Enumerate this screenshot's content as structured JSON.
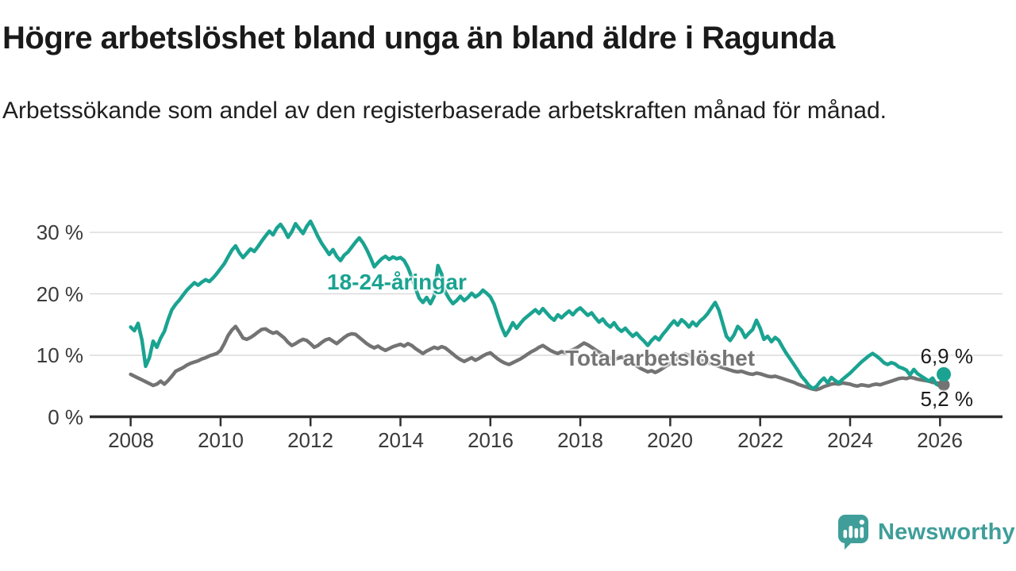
{
  "header": {
    "title": "Högre arbetslöshet bland unga än bland äldre i Ragunda",
    "subtitle": "Arbetssökande som andel av den registerbaserade arbetskraften månad för månad."
  },
  "chart_data": {
    "type": "line",
    "title": "Högre arbetslöshet bland unga än bland äldre i Ragunda",
    "subtitle": "Arbetssökande som andel av den registerbaserade arbetskraften månad för månad.",
    "unit": "%",
    "frequency": "monthly",
    "x_start": "2008-01",
    "x_end": "2026-02",
    "x_tick_labels": [
      "2008",
      "2010",
      "2012",
      "2014",
      "2016",
      "2018",
      "2020",
      "2022",
      "2024",
      "2026"
    ],
    "x_tick_years": [
      2008,
      2010,
      2012,
      2014,
      2016,
      2018,
      2020,
      2022,
      2024,
      2026
    ],
    "y_ticks": [
      0,
      10,
      20,
      30
    ],
    "y_tick_labels": [
      "0 %",
      "10 %",
      "20 %",
      "30 %"
    ],
    "ylim": [
      0,
      33
    ],
    "grid": "horizontal",
    "legend_position": "inline-labels",
    "colors": {
      "young": "#1aa391",
      "total": "#737373",
      "axis": "#2e2e2e",
      "grid": "#dcdcdc"
    },
    "series": [
      {
        "name": "18-24-åringar",
        "color": "#1aa391",
        "end_label": "6,9 %",
        "last_value": 6.9,
        "values": [
          14.6,
          14.0,
          15.2,
          12.5,
          8.2,
          9.6,
          12.3,
          11.3,
          12.8,
          13.9,
          15.8,
          17.4,
          18.3,
          19.0,
          19.8,
          20.6,
          21.2,
          21.8,
          21.4,
          21.9,
          22.3,
          22.0,
          22.6,
          23.3,
          24.1,
          24.9,
          26.0,
          27.1,
          27.8,
          26.7,
          25.9,
          26.6,
          27.3,
          26.9,
          27.7,
          28.6,
          29.4,
          30.2,
          29.6,
          30.7,
          31.3,
          30.4,
          29.2,
          30.1,
          31.4,
          30.6,
          29.8,
          31.0,
          31.8,
          30.6,
          29.3,
          28.2,
          27.3,
          26.4,
          27.2,
          26.1,
          25.4,
          26.3,
          26.8,
          27.6,
          28.4,
          29.1,
          28.3,
          27.2,
          25.9,
          24.4,
          25.1,
          25.7,
          26.1,
          25.6,
          26.0,
          25.7,
          25.9,
          25.4,
          24.3,
          22.7,
          20.9,
          19.3,
          18.6,
          19.4,
          18.4,
          19.6,
          24.6,
          23.2,
          20.3,
          19.2,
          18.4,
          18.9,
          19.6,
          18.9,
          19.4,
          20.1,
          19.5,
          19.9,
          20.6,
          20.1,
          19.5,
          18.3,
          16.4,
          14.6,
          13.2,
          14.1,
          15.3,
          14.4,
          15.2,
          15.9,
          16.4,
          16.9,
          17.4,
          16.8,
          17.6,
          16.9,
          16.2,
          15.7,
          16.6,
          16.1,
          16.7,
          17.2,
          16.6,
          17.3,
          17.7,
          17.1,
          16.5,
          16.9,
          16.1,
          15.4,
          15.9,
          15.1,
          14.6,
          15.3,
          14.4,
          13.9,
          14.4,
          13.7,
          13.1,
          13.6,
          12.9,
          12.3,
          11.6,
          12.4,
          13.0,
          12.5,
          13.4,
          14.1,
          14.9,
          15.6,
          14.9,
          15.8,
          15.3,
          14.6,
          15.4,
          14.8,
          15.6,
          16.1,
          16.8,
          17.7,
          18.6,
          17.3,
          15.2,
          13.1,
          12.4,
          13.3,
          14.7,
          14.1,
          12.9,
          13.6,
          14.2,
          15.7,
          14.4,
          12.6,
          13.1,
          12.2,
          12.9,
          12.4,
          11.3,
          10.3,
          9.4,
          8.5,
          7.6,
          6.6,
          5.9,
          5.1,
          4.6,
          4.9,
          5.7,
          6.3,
          5.5,
          6.4,
          5.9,
          5.5,
          6.1,
          6.6,
          7.1,
          7.7,
          8.3,
          8.9,
          9.4,
          9.9,
          10.3,
          9.9,
          9.4,
          8.8,
          8.5,
          8.8,
          8.6,
          8.1,
          7.9,
          7.6,
          6.8,
          7.7,
          7.0,
          6.6,
          6.2,
          5.8,
          6.3,
          5.3,
          5.0,
          6.9
        ]
      },
      {
        "name": "Total arbetslöshet",
        "color": "#737373",
        "end_label": "5,2 %",
        "last_value": 5.2,
        "values": [
          6.9,
          6.6,
          6.3,
          6.0,
          5.7,
          5.4,
          5.1,
          5.3,
          5.8,
          5.3,
          5.9,
          6.6,
          7.4,
          7.7,
          8.0,
          8.4,
          8.7,
          8.9,
          9.1,
          9.4,
          9.6,
          9.9,
          10.1,
          10.3,
          10.8,
          11.9,
          13.2,
          14.1,
          14.7,
          13.8,
          12.8,
          12.6,
          12.9,
          13.3,
          13.8,
          14.2,
          14.3,
          13.9,
          13.6,
          13.8,
          13.3,
          12.8,
          12.1,
          11.6,
          11.9,
          12.3,
          12.6,
          12.4,
          11.9,
          11.3,
          11.6,
          12.1,
          12.5,
          12.7,
          12.3,
          11.9,
          12.4,
          12.9,
          13.3,
          13.5,
          13.4,
          12.9,
          12.4,
          11.9,
          11.5,
          11.2,
          11.5,
          11.1,
          10.8,
          11.1,
          11.4,
          11.6,
          11.8,
          11.5,
          11.9,
          11.6,
          11.1,
          10.7,
          10.3,
          10.7,
          11.0,
          11.3,
          11.1,
          11.4,
          11.2,
          10.7,
          10.2,
          9.7,
          9.3,
          9.0,
          9.3,
          9.6,
          9.2,
          9.5,
          9.9,
          10.2,
          10.4,
          9.9,
          9.4,
          9.0,
          8.7,
          8.5,
          8.8,
          9.1,
          9.4,
          9.8,
          10.2,
          10.6,
          10.9,
          11.3,
          11.6,
          11.2,
          10.8,
          10.5,
          10.3,
          10.6,
          10.4,
          10.7,
          10.9,
          11.2,
          11.6,
          12.0,
          11.7,
          11.3,
          10.9,
          10.5,
          10.1,
          9.8,
          9.5,
          9.3,
          9.5,
          9.7,
          9.4,
          9.1,
          8.7,
          8.3,
          7.9,
          7.6,
          7.3,
          7.5,
          7.2,
          7.5,
          7.9,
          8.3,
          8.7,
          9.1,
          9.5,
          9.9,
          10.2,
          10.0,
          9.7,
          9.5,
          9.2,
          9.0,
          8.8,
          8.6,
          8.4,
          8.2,
          8.0,
          7.8,
          7.6,
          7.4,
          7.3,
          7.4,
          7.2,
          7.0,
          6.9,
          7.1,
          7.0,
          6.8,
          6.6,
          6.5,
          6.6,
          6.4,
          6.2,
          6.0,
          5.8,
          5.6,
          5.3,
          5.1,
          4.9,
          4.7,
          4.5,
          4.4,
          4.6,
          4.9,
          5.1,
          5.3,
          5.4,
          5.3,
          5.5,
          5.4,
          5.3,
          5.1,
          5.0,
          5.2,
          5.1,
          5.0,
          5.2,
          5.3,
          5.2,
          5.4,
          5.6,
          5.8,
          6.0,
          6.2,
          6.3,
          6.2,
          6.4,
          6.3,
          6.1,
          6.0,
          5.9,
          5.8,
          5.6,
          5.5,
          5.4,
          5.2
        ]
      }
    ]
  },
  "footer": {
    "brand": "Newsworthy"
  }
}
